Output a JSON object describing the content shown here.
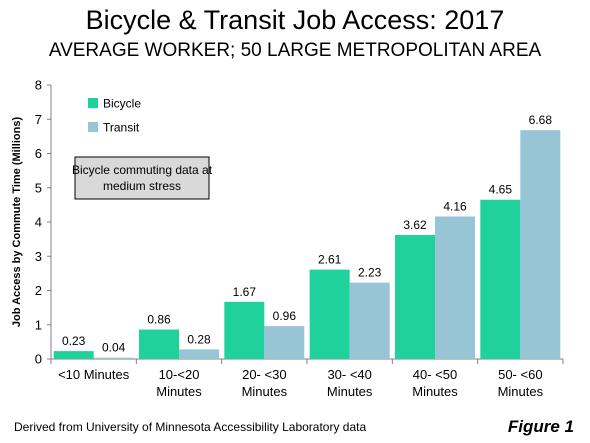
{
  "title": "Bicycle & Transit Job Access: 2017",
  "subtitle": "AVERAGE WORKER; 50 LARGE METROPOLITAN AREA",
  "footer": "Derived from University of Minnesota Accessibility Laboratory data",
  "figure_label": "Figure 1",
  "colors": {
    "bicycle": "#1FD19A",
    "transit": "#97C5D6",
    "note_bg": "#D9D9D9",
    "axis": "#808080"
  },
  "chart_data": {
    "type": "bar",
    "title": "Bicycle & Transit Job Access: 2017",
    "subtitle": "AVERAGE WORKER; 50 LARGE METROPOLITAN AREA",
    "ylabel": "Job Access by Commute Time (Millions)",
    "xlabel": "",
    "ylim": [
      0,
      8
    ],
    "yticks": [
      0,
      1,
      2,
      3,
      4,
      5,
      6,
      7,
      8
    ],
    "grid": false,
    "legend": "top-left",
    "categories": [
      [
        "<10 Minutes"
      ],
      [
        "10-<20",
        "Minutes"
      ],
      [
        "20- <30",
        "Minutes"
      ],
      [
        "30- <40",
        "Minutes"
      ],
      [
        "40- <50",
        "Minutes"
      ],
      [
        "50- <60",
        "Minutes"
      ]
    ],
    "series": [
      {
        "name": "Bicycle",
        "values": [
          0.23,
          0.86,
          1.67,
          2.61,
          3.62,
          4.65
        ]
      },
      {
        "name": "Transit",
        "values": [
          0.04,
          0.28,
          0.96,
          2.23,
          4.16,
          6.68
        ]
      }
    ],
    "annotation": [
      "Bicycle commuting data at",
      "medium stress"
    ]
  }
}
